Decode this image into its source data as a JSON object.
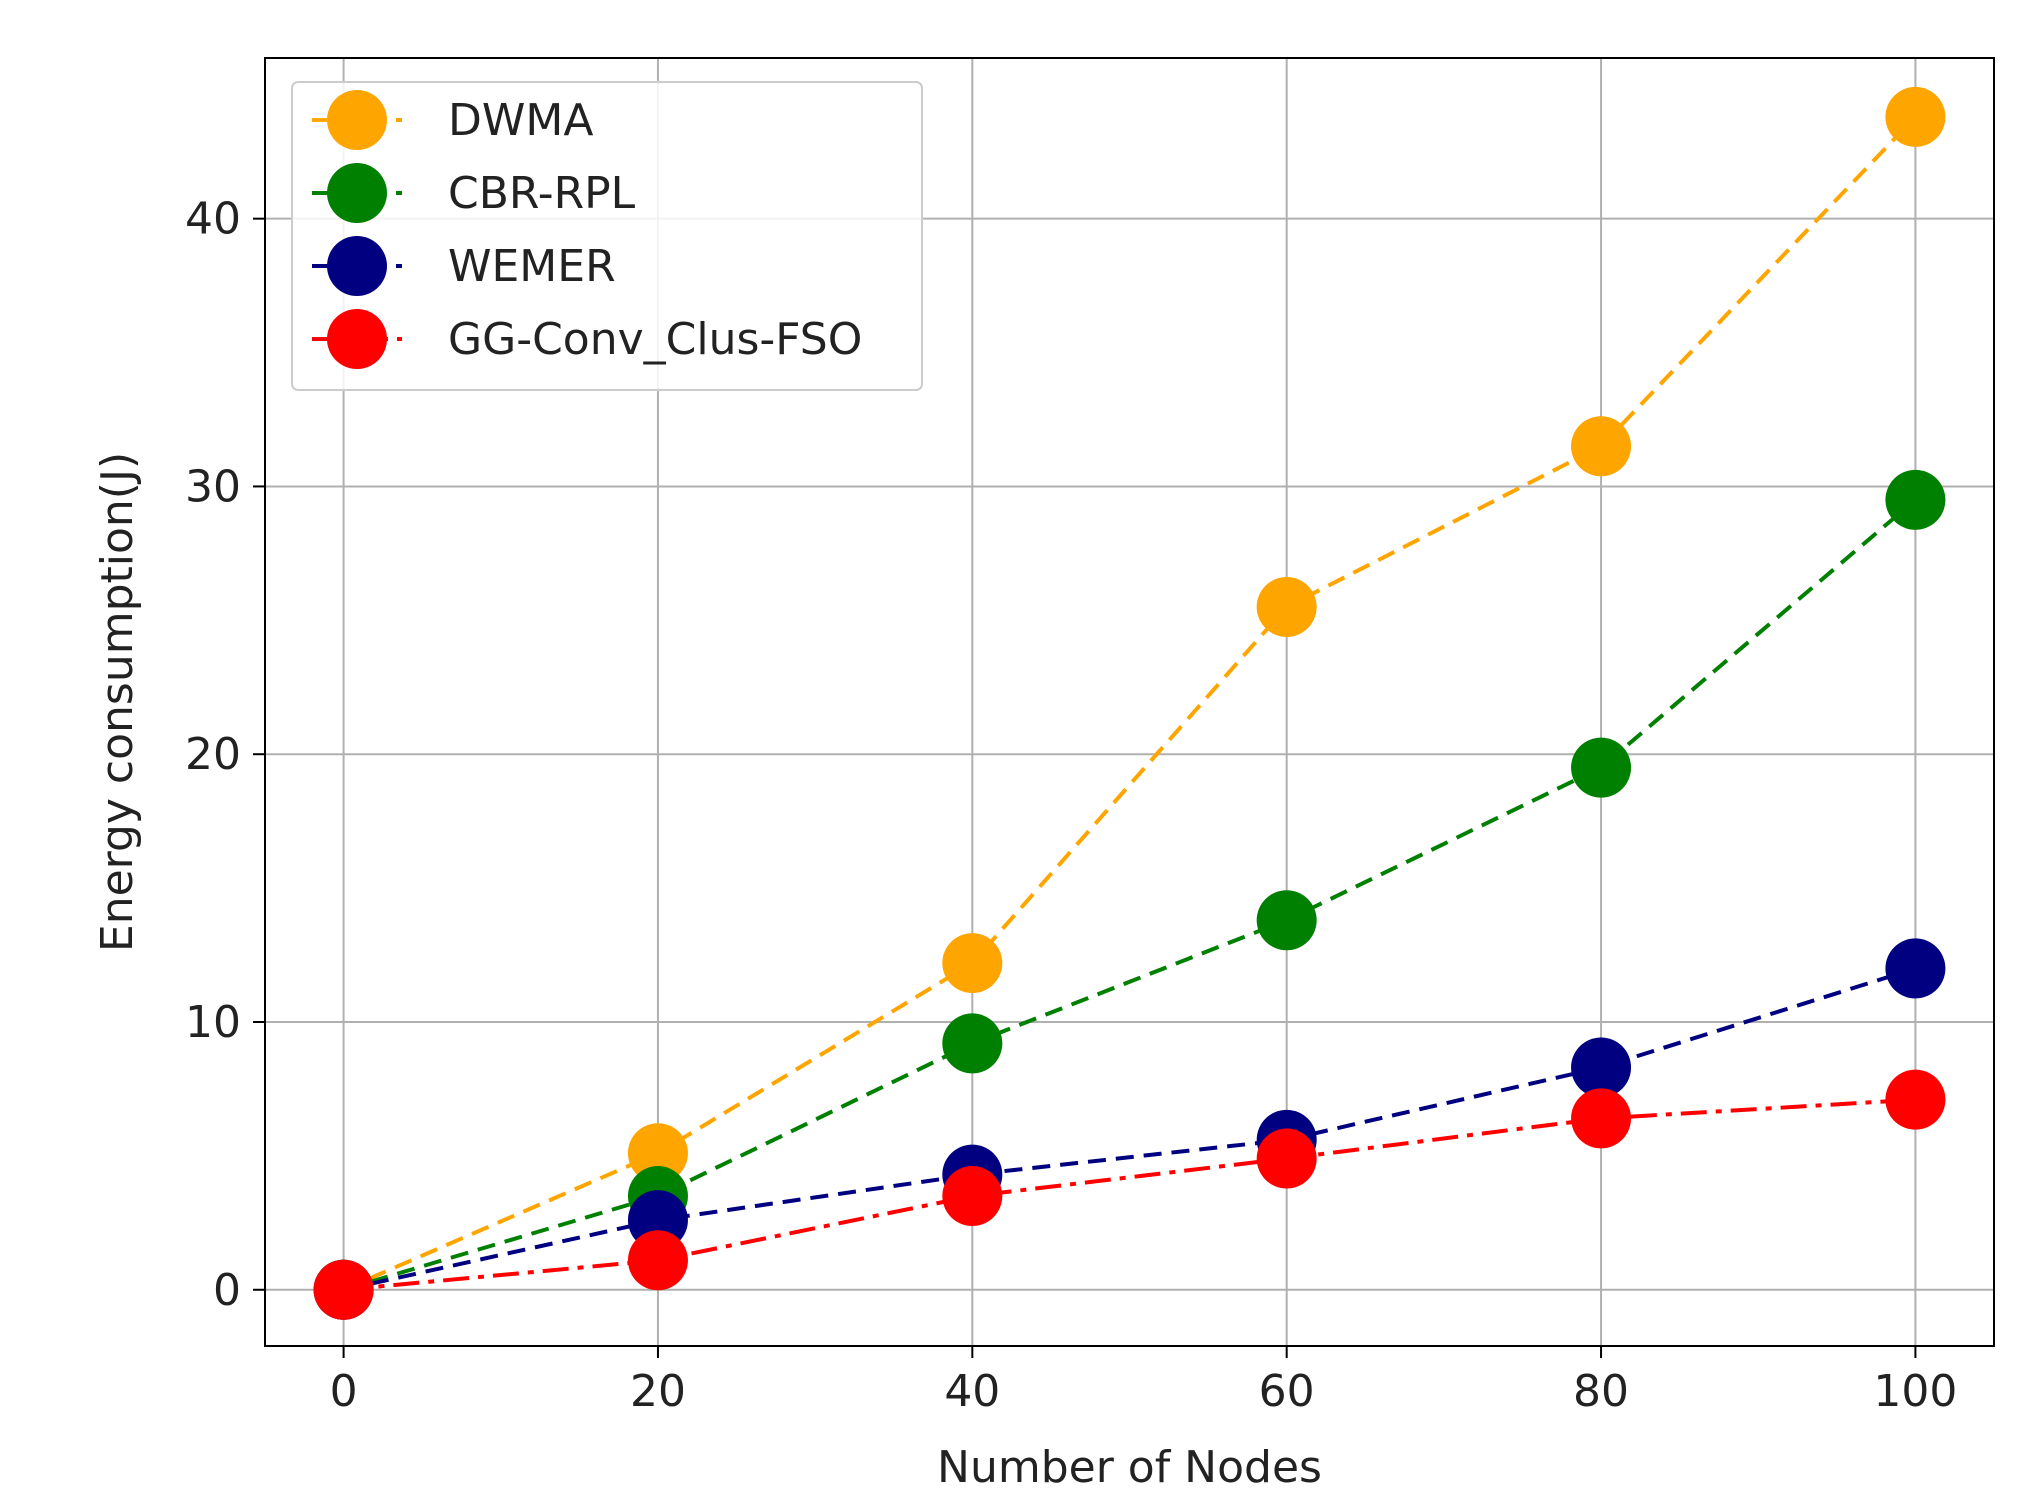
{
  "chart_data": {
    "type": "line",
    "title": "",
    "xlabel": "Number of Nodes",
    "ylabel": "Energy consumption(J)",
    "x": [
      0,
      20,
      40,
      60,
      80,
      100
    ],
    "xlim": [
      -5,
      105
    ],
    "ylim": [
      -2.1,
      46
    ],
    "xticks": [
      0,
      20,
      40,
      60,
      80,
      100
    ],
    "yticks": [
      0,
      10,
      20,
      30,
      40
    ],
    "grid": true,
    "legend_position": "top-left",
    "series": [
      {
        "name": "DWMA",
        "color": "#FFA500",
        "linestyle": "dashed",
        "marker": "circle",
        "values": [
          0,
          5.1,
          12.2,
          25.5,
          31.5,
          43.8
        ]
      },
      {
        "name": "CBR-RPL",
        "color": "#008000",
        "linestyle": "dashed",
        "marker": "circle",
        "values": [
          0,
          3.5,
          9.2,
          13.8,
          19.5,
          29.5
        ]
      },
      {
        "name": "WEMER",
        "color": "#000080",
        "linestyle": "dashed",
        "marker": "circle",
        "values": [
          0,
          2.6,
          4.3,
          5.6,
          8.3,
          12.0
        ]
      },
      {
        "name": "GG-Conv_Clus-FSO",
        "color": "#FF0000",
        "linestyle": "dashdot",
        "marker": "circle",
        "values": [
          0,
          1.1,
          3.5,
          4.9,
          6.4,
          7.1
        ]
      }
    ]
  }
}
